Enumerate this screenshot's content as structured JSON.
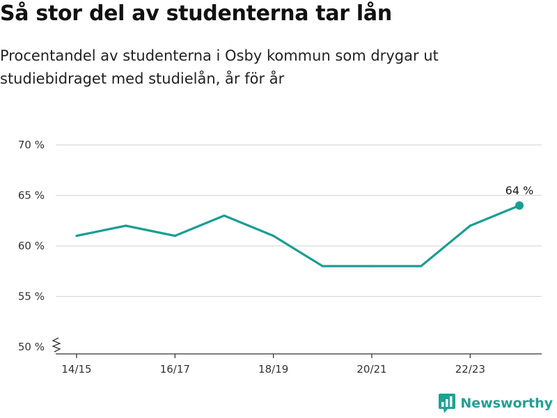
{
  "header": {
    "title": "Så stor del av studenterna tar lån",
    "subtitle": "Procentandel av studenterna i Osby kommun som drygar ut studiebidraget med studielån, år för år"
  },
  "brand": {
    "name": "Newsworthy",
    "icon": "newsworthy-logo-icon",
    "color": "#22a093"
  },
  "chart_data": {
    "type": "line",
    "x": [
      "14/15",
      "15/16",
      "16/17",
      "17/18",
      "18/19",
      "19/20",
      "20/21",
      "21/22",
      "22/23",
      "23/24"
    ],
    "series": [
      {
        "values": [
          61,
          62,
          61,
          63,
          61,
          58,
          58,
          58,
          62,
          64
        ],
        "color": "#1a9e92"
      }
    ],
    "x_tick_labels": [
      "14/15",
      "16/17",
      "18/19",
      "20/21",
      "22/23"
    ],
    "y_ticks": [
      50,
      55,
      60,
      65,
      70
    ],
    "y_tick_labels": [
      "50 %",
      "55 %",
      "60 %",
      "65 %",
      "70 %"
    ],
    "ylim": [
      50,
      70
    ],
    "y_axis_break": true,
    "grid": true,
    "last_point_label": "64 %",
    "xlabel": "",
    "ylabel": ""
  }
}
